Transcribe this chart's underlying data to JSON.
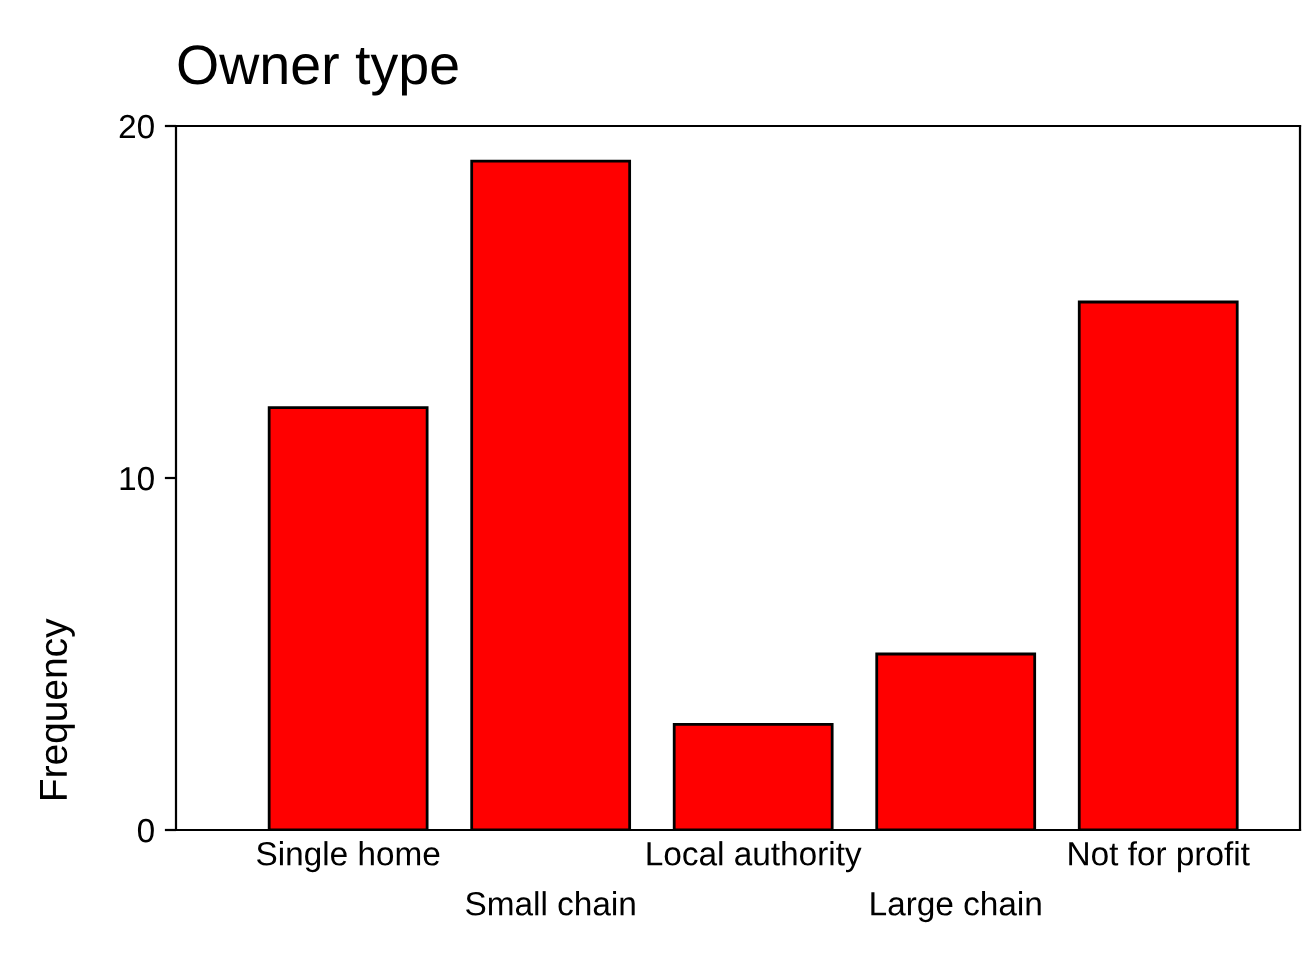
{
  "chart_data": {
    "type": "bar",
    "title": "Owner type",
    "ylabel": "Frequency",
    "categories": [
      "Single home",
      "Small chain",
      "Local authority",
      "Large chain",
      "Not for profit"
    ],
    "values": [
      12,
      19,
      3,
      5,
      15
    ],
    "color": "#ff0000",
    "ylim": [
      0,
      20
    ],
    "yticks": [
      0,
      10,
      20
    ],
    "grid": false,
    "legend": false
  }
}
